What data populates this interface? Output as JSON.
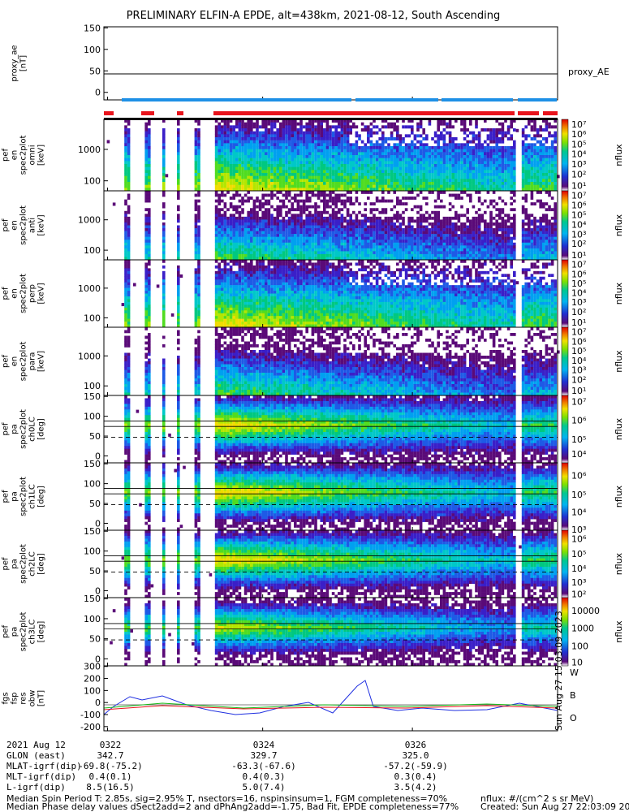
{
  "title": "PRELIMINARY ELFIN-A EPDE, alt=438km, 2021-08-12, South Ascending",
  "timestamp_vertical": "Sun Aug 27 15:03:09 2023",
  "colors": {
    "red_bar": "#e8141c",
    "blue_bar": "#1e90e6",
    "w": "#e8141c",
    "b": "#16b816",
    "o": "#1f2fe0"
  },
  "panels": [
    {
      "ylabel": [
        "proxy_ae",
        "[nT]"
      ],
      "right": "proxy_AE",
      "yticks": [
        "150",
        "100",
        "50",
        "0"
      ]
    },
    {
      "ylabel": [
        "ela",
        "pef",
        "en",
        "spec2plot",
        "omni",
        "[keV]"
      ],
      "yticks": [
        "1000",
        "100"
      ],
      "cb_ticks": [
        "10⁷",
        "10⁶",
        "10⁵",
        "10⁴",
        "10³",
        "10²",
        "10¹"
      ],
      "cb_label": "nflux"
    },
    {
      "ylabel": [
        "ela",
        "pef",
        "en",
        "spec2plot",
        "anti",
        "[keV]"
      ],
      "yticks": [
        "1000",
        "100"
      ],
      "cb_ticks": [
        "10⁷",
        "10⁶",
        "10⁵",
        "10⁴",
        "10³",
        "10²",
        "10¹"
      ],
      "cb_label": "nflux"
    },
    {
      "ylabel": [
        "ela",
        "pef",
        "en",
        "spec2plot",
        "perp",
        "[keV]"
      ],
      "yticks": [
        "1000",
        "100"
      ],
      "cb_ticks": [
        "10⁷",
        "10⁶",
        "10⁵",
        "10⁴",
        "10³",
        "10²",
        "10¹"
      ],
      "cb_label": "nflux"
    },
    {
      "ylabel": [
        "ela",
        "pef",
        "en",
        "spec2plot",
        "para",
        "[keV]"
      ],
      "yticks": [
        "1000",
        "100"
      ],
      "cb_ticks": [
        "10⁷",
        "10⁶",
        "10⁵",
        "10⁴",
        "10³",
        "10²",
        "10¹"
      ],
      "cb_label": "nflux"
    },
    {
      "ylabel": [
        "ela",
        "pef",
        "pa",
        "spec2plot",
        "ch0LC",
        "[deg]"
      ],
      "yticks": [
        "150",
        "100",
        "50",
        "0"
      ],
      "cb_ticks": [
        "10⁷",
        "10⁶",
        "10⁵",
        "10⁴"
      ],
      "cb_label": "nflux"
    },
    {
      "ylabel": [
        "ela",
        "pef",
        "pa",
        "spec2plot",
        "ch1LC",
        "[deg]"
      ],
      "yticks": [
        "150",
        "100",
        "50",
        "0"
      ],
      "cb_ticks": [
        "10⁶",
        "10⁵",
        "10⁴",
        "10³"
      ],
      "cb_label": "nflux"
    },
    {
      "ylabel": [
        "ela",
        "pef",
        "pa",
        "spec2plot",
        "ch2LC",
        "[deg]"
      ],
      "yticks": [
        "150",
        "100",
        "50",
        "0"
      ],
      "cb_ticks": [
        "10⁶",
        "10⁵",
        "10⁴",
        "10³",
        "10²"
      ],
      "cb_label": "nflux"
    },
    {
      "ylabel": [
        "ela",
        "pef",
        "pa",
        "spec2plot",
        "ch3LC",
        "[deg]"
      ],
      "yticks": [
        "150",
        "100",
        "50",
        "0"
      ],
      "cb_ticks": [
        "10000",
        "1000",
        "100",
        "10"
      ],
      "cb_label": "nflux"
    },
    {
      "ylabel": [
        "ela",
        "fgs",
        "fsp",
        "res",
        "obw",
        "[nT]"
      ],
      "yticks": [
        "300",
        "200",
        "100",
        "0",
        "-100",
        "-200"
      ],
      "legend": [
        "W",
        "B",
        "O"
      ]
    }
  ],
  "ephemeris": {
    "rows": [
      {
        "label": "2021 Aug 12",
        "v1": "0322",
        "v2": "0324",
        "v3": "0326"
      },
      {
        "label": "GLON (east)",
        "v1": "342.7",
        "v2": "329.7",
        "v3": "325.0"
      },
      {
        "label": "MLAT-igrf(dip)",
        "v1": "-69.8(-75.2)",
        "v2": "-63.3(-67.6)",
        "v3": "-57.2(-59.9)"
      },
      {
        "label": "MLT-igrf(dip)",
        "v1": "0.4(0.1)",
        "v2": "0.4(0.3)",
        "v3": "0.3(0.4)"
      },
      {
        "label": "L-igrf(dip)",
        "v1": "8.5(16.5)",
        "v2": "5.0(7.4)",
        "v3": "3.5(4.2)"
      }
    ]
  },
  "footer": {
    "line1": "Median Spin Period T: 2.85s, sig=2.95% T, nsectors=16, nspinsinsum=1, FGM completeness=70%",
    "line2": "Median Phase delay values dSect2add=2 and dPhAng2add=-1.75, Bad Fit, EPDE completeness=77%",
    "units": "nflux: #/(cm^2 s sr MeV)",
    "created": "Created: Sun Aug 27 22:03:09 2023"
  },
  "chart_data": {
    "type": "heatmap",
    "title": "PRELIMINARY ELFIN-A EPDE, alt=438km, 2021-08-12, South Ascending",
    "x_ticks": [
      "0322",
      "0324",
      "0326"
    ],
    "proxy_ae": {
      "ylim": [
        0,
        150
      ],
      "value": 50
    },
    "energy_ylim_keV": [
      60,
      6000
    ],
    "pa_ylim_deg": [
      0,
      180
    ],
    "pa_reference_lines_deg": [
      70,
      90,
      110
    ],
    "fgs_ylim": [
      -200,
      300
    ],
    "colorscale": "nflux"
  }
}
